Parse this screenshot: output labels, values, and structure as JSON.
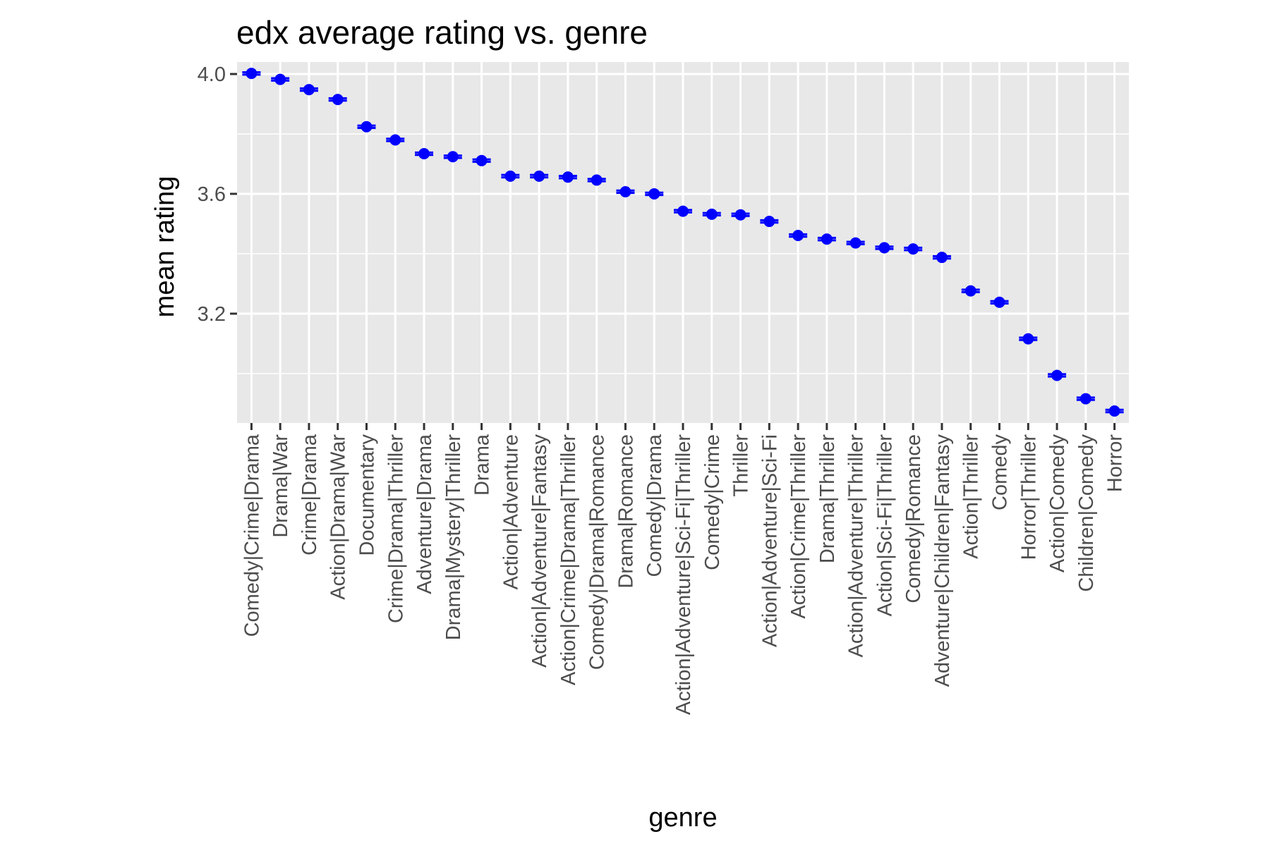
{
  "chart_data": {
    "type": "scatter",
    "title": "edx average rating vs. genre",
    "xlabel": "genre",
    "ylabel": "mean rating",
    "categories": [
      "Comedy|Crime|Drama",
      "Drama|War",
      "Crime|Drama",
      "Action|Drama|War",
      "Documentary",
      "Crime|Drama|Thriller",
      "Adventure|Drama",
      "Drama|Mystery|Thriller",
      "Drama",
      "Action|Adventure",
      "Action|Adventure|Fantasy",
      "Action|Crime|Drama|Thriller",
      "Comedy|Drama|Romance",
      "Drama|Romance",
      "Comedy|Drama",
      "Action|Adventure|Sci-Fi|Thriller",
      "Comedy|Crime",
      "Thriller",
      "Action|Adventure|Sci-Fi",
      "Action|Crime|Thriller",
      "Drama|Thriller",
      "Action|Adventure|Thriller",
      "Action|Sci-Fi|Thriller",
      "Comedy|Romance",
      "Adventure|Children|Fantasy",
      "Action|Thriller",
      "Comedy",
      "Horror|Thriller",
      "Action|Comedy",
      "Children|Comedy",
      "Horror"
    ],
    "values": [
      4.002,
      3.982,
      3.948,
      3.915,
      3.824,
      3.78,
      3.734,
      3.724,
      3.711,
      3.659,
      3.659,
      3.656,
      3.646,
      3.607,
      3.6,
      3.542,
      3.532,
      3.53,
      3.508,
      3.461,
      3.449,
      3.436,
      3.42,
      3.416,
      3.388,
      3.276,
      3.238,
      3.116,
      2.994,
      2.916,
      2.875
    ],
    "error_bar_halfwidth": 0.004,
    "y_ticks": [
      3.2,
      3.6,
      4.0
    ],
    "y_tick_labels": [
      "3.2",
      "3.6",
      "4.0"
    ],
    "ylim": [
      2.835,
      4.04
    ],
    "grid": true,
    "legend": "none",
    "colors": {
      "point": "#0000ff",
      "panel": "#e8e8e8",
      "grid": "#ffffff",
      "tick": "#333333",
      "tick_label": "#4d4d4d"
    }
  }
}
